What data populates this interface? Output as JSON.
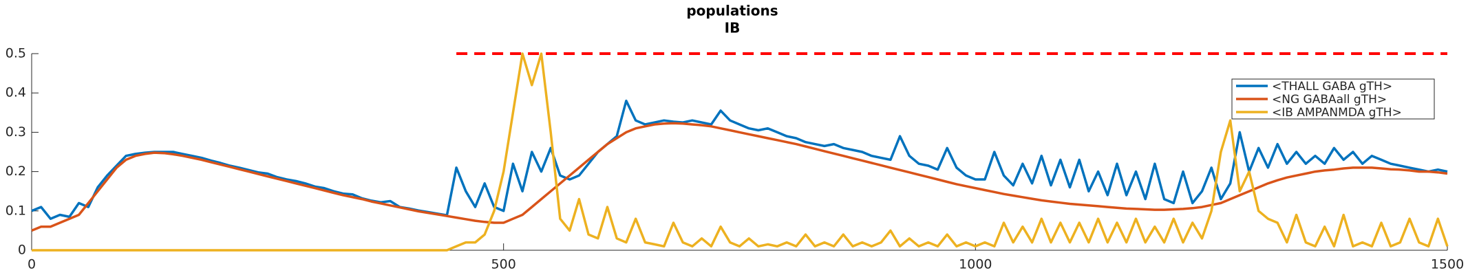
{
  "chart_data": {
    "type": "line",
    "title": "populations",
    "subtitle": "IB",
    "x": [
      0,
      10,
      20,
      30,
      40,
      50,
      60,
      70,
      80,
      90,
      100,
      110,
      120,
      130,
      140,
      150,
      160,
      170,
      180,
      190,
      200,
      210,
      220,
      230,
      240,
      250,
      260,
      270,
      280,
      290,
      300,
      310,
      320,
      330,
      340,
      350,
      360,
      370,
      380,
      390,
      400,
      410,
      420,
      430,
      440,
      450,
      460,
      470,
      480,
      490,
      500,
      510,
      520,
      530,
      540,
      550,
      560,
      570,
      580,
      590,
      600,
      610,
      620,
      630,
      640,
      650,
      660,
      670,
      680,
      690,
      700,
      710,
      720,
      730,
      740,
      750,
      760,
      770,
      780,
      790,
      800,
      810,
      820,
      830,
      840,
      850,
      860,
      870,
      880,
      890,
      900,
      910,
      920,
      930,
      940,
      950,
      960,
      970,
      980,
      990,
      1000,
      1010,
      1020,
      1030,
      1040,
      1050,
      1060,
      1070,
      1080,
      1090,
      1100,
      1110,
      1120,
      1130,
      1140,
      1150,
      1160,
      1170,
      1180,
      1190,
      1200,
      1210,
      1220,
      1230,
      1240,
      1250,
      1260,
      1270,
      1280,
      1290,
      1300,
      1310,
      1320,
      1330,
      1340,
      1350,
      1360,
      1370,
      1380,
      1390,
      1400,
      1410,
      1420,
      1430,
      1440,
      1450,
      1460,
      1470,
      1480,
      1490,
      1500
    ],
    "series": [
      {
        "name": "<THALL GABA gTH>",
        "color": "#0072bd",
        "values": [
          0.1,
          0.11,
          0.08,
          0.09,
          0.085,
          0.12,
          0.11,
          0.16,
          0.19,
          0.215,
          0.24,
          0.245,
          0.248,
          0.25,
          0.25,
          0.25,
          0.245,
          0.24,
          0.235,
          0.228,
          0.222,
          0.215,
          0.21,
          0.204,
          0.198,
          0.195,
          0.186,
          0.18,
          0.176,
          0.17,
          0.162,
          0.158,
          0.15,
          0.144,
          0.142,
          0.132,
          0.126,
          0.122,
          0.125,
          0.11,
          0.106,
          0.101,
          0.097,
          0.093,
          0.089,
          0.21,
          0.15,
          0.11,
          0.17,
          0.11,
          0.1,
          0.22,
          0.15,
          0.25,
          0.2,
          0.26,
          0.19,
          0.18,
          0.19,
          0.22,
          0.25,
          0.27,
          0.29,
          0.38,
          0.33,
          0.32,
          0.325,
          0.33,
          0.327,
          0.325,
          0.33,
          0.325,
          0.32,
          0.355,
          0.33,
          0.32,
          0.31,
          0.305,
          0.31,
          0.3,
          0.29,
          0.285,
          0.275,
          0.27,
          0.265,
          0.27,
          0.26,
          0.255,
          0.25,
          0.24,
          0.235,
          0.23,
          0.29,
          0.24,
          0.22,
          0.215,
          0.205,
          0.26,
          0.21,
          0.19,
          0.18,
          0.18,
          0.25,
          0.19,
          0.165,
          0.22,
          0.17,
          0.24,
          0.165,
          0.23,
          0.16,
          0.23,
          0.15,
          0.2,
          0.14,
          0.22,
          0.14,
          0.2,
          0.13,
          0.22,
          0.13,
          0.12,
          0.2,
          0.12,
          0.15,
          0.21,
          0.13,
          0.17,
          0.3,
          0.2,
          0.26,
          0.21,
          0.27,
          0.22,
          0.25,
          0.22,
          0.24,
          0.22,
          0.26,
          0.23,
          0.25,
          0.22,
          0.24,
          0.23,
          0.22,
          0.215,
          0.21,
          0.205,
          0.2,
          0.205,
          0.2
        ]
      },
      {
        "name": "<NG GABAall gTH>",
        "color": "#d95319",
        "values": [
          0.05,
          0.06,
          0.06,
          0.07,
          0.08,
          0.09,
          0.12,
          0.15,
          0.18,
          0.21,
          0.23,
          0.24,
          0.245,
          0.248,
          0.247,
          0.244,
          0.24,
          0.235,
          0.23,
          0.224,
          0.218,
          0.212,
          0.206,
          0.2,
          0.194,
          0.188,
          0.182,
          0.176,
          0.17,
          0.164,
          0.158,
          0.152,
          0.146,
          0.14,
          0.135,
          0.13,
          0.124,
          0.119,
          0.114,
          0.109,
          0.104,
          0.099,
          0.095,
          0.091,
          0.087,
          0.083,
          0.079,
          0.075,
          0.072,
          0.07,
          0.07,
          0.08,
          0.09,
          0.11,
          0.13,
          0.15,
          0.17,
          0.19,
          0.21,
          0.23,
          0.25,
          0.27,
          0.285,
          0.3,
          0.31,
          0.315,
          0.32,
          0.322,
          0.323,
          0.322,
          0.32,
          0.318,
          0.315,
          0.31,
          0.305,
          0.3,
          0.295,
          0.29,
          0.285,
          0.28,
          0.275,
          0.27,
          0.264,
          0.258,
          0.252,
          0.246,
          0.24,
          0.234,
          0.228,
          0.222,
          0.216,
          0.21,
          0.204,
          0.198,
          0.192,
          0.186,
          0.18,
          0.174,
          0.168,
          0.163,
          0.158,
          0.153,
          0.148,
          0.143,
          0.139,
          0.135,
          0.131,
          0.127,
          0.124,
          0.121,
          0.118,
          0.116,
          0.114,
          0.112,
          0.11,
          0.108,
          0.106,
          0.105,
          0.104,
          0.103,
          0.103,
          0.104,
          0.105,
          0.107,
          0.11,
          0.115,
          0.12,
          0.13,
          0.14,
          0.15,
          0.16,
          0.17,
          0.178,
          0.185,
          0.19,
          0.195,
          0.2,
          0.203,
          0.205,
          0.208,
          0.21,
          0.21,
          0.21,
          0.208,
          0.206,
          0.205,
          0.203,
          0.2,
          0.2,
          0.198,
          0.195
        ]
      },
      {
        "name": "<IB AMPANMDA gTH>",
        "color": "#edb120",
        "values": [
          0,
          0,
          0,
          0,
          0,
          0,
          0,
          0,
          0,
          0,
          0,
          0,
          0,
          0,
          0,
          0,
          0,
          0,
          0,
          0,
          0,
          0,
          0,
          0,
          0,
          0,
          0,
          0,
          0,
          0,
          0,
          0,
          0,
          0,
          0,
          0,
          0,
          0,
          0,
          0,
          0,
          0,
          0,
          0,
          0,
          0.01,
          0.02,
          0.02,
          0.04,
          0.1,
          0.2,
          0.35,
          0.5,
          0.42,
          0.5,
          0.3,
          0.08,
          0.05,
          0.13,
          0.04,
          0.03,
          0.11,
          0.03,
          0.02,
          0.08,
          0.02,
          0.015,
          0.01,
          0.07,
          0.02,
          0.01,
          0.03,
          0.01,
          0.06,
          0.02,
          0.01,
          0.03,
          0.01,
          0.015,
          0.01,
          0.02,
          0.01,
          0.04,
          0.01,
          0.02,
          0.01,
          0.04,
          0.01,
          0.02,
          0.01,
          0.02,
          0.05,
          0.01,
          0.03,
          0.01,
          0.02,
          0.01,
          0.04,
          0.01,
          0.02,
          0.01,
          0.02,
          0.01,
          0.07,
          0.02,
          0.06,
          0.02,
          0.08,
          0.02,
          0.07,
          0.02,
          0.07,
          0.02,
          0.08,
          0.02,
          0.07,
          0.02,
          0.08,
          0.02,
          0.06,
          0.02,
          0.08,
          0.02,
          0.07,
          0.03,
          0.1,
          0.25,
          0.33,
          0.15,
          0.2,
          0.1,
          0.08,
          0.07,
          0.02,
          0.09,
          0.02,
          0.01,
          0.06,
          0.01,
          0.09,
          0.01,
          0.02,
          0.01,
          0.07,
          0.01,
          0.02,
          0.08,
          0.02,
          0.01,
          0.08,
          0.01
        ]
      }
    ],
    "reference_line": {
      "y": 0.5,
      "x": [
        450,
        1500
      ],
      "color": "#ff0000",
      "style": "dashed"
    },
    "xlim": [
      0,
      1500
    ],
    "xticks": [
      0,
      500,
      1000,
      1500
    ],
    "ylim": [
      0,
      0.5
    ],
    "yticks": [
      0,
      0.1,
      0.2,
      0.3,
      0.4,
      0.5
    ],
    "legend": "upper right"
  }
}
